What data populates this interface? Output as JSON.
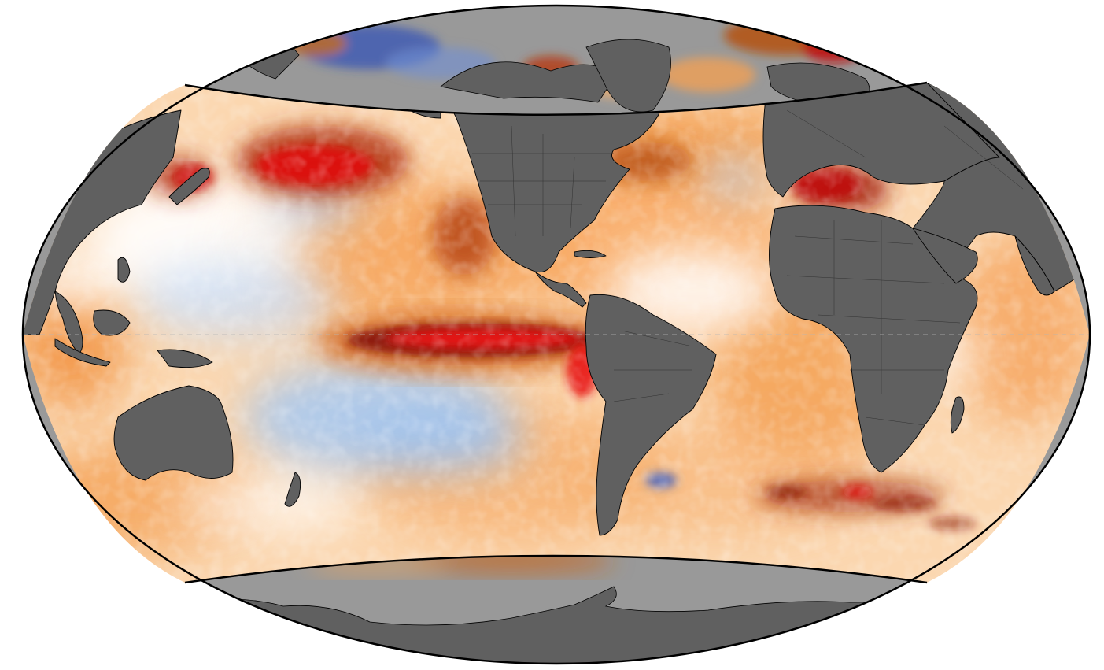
{
  "map": {
    "projection": "winkel-tripel",
    "variable": "sea-surface-temperature-anomaly",
    "colors": {
      "land": "#606060",
      "masked_ocean_polar": "#999999",
      "coastline": "#000000",
      "border": "#2a2a2a",
      "graticule": "#b5b5b5",
      "outline": "#000000",
      "warm_light": "#fbd3a8",
      "warm_mid": "#f8a55a",
      "warm_strong": "#ee7a1e",
      "hot_brown": "#a5420f",
      "hot_dark": "#8a1508",
      "hot_red": "#e01010",
      "neutral": "#ffffff",
      "cool_light": "#d3e5fa",
      "cool_mid": "#9cc2ee",
      "cool_strong": "#3a5fc8",
      "cool_dark": "#1a2a90"
    },
    "features": [
      {
        "name": "el-nino-tongue",
        "label": ""
      },
      {
        "name": "north-pacific-warm-blob",
        "label": ""
      },
      {
        "name": "mediterranean-warm",
        "label": ""
      },
      {
        "name": "south-pacific-cool",
        "label": ""
      },
      {
        "name": "southern-ocean-anomalies",
        "label": ""
      }
    ],
    "legend": {
      "present": false
    }
  }
}
